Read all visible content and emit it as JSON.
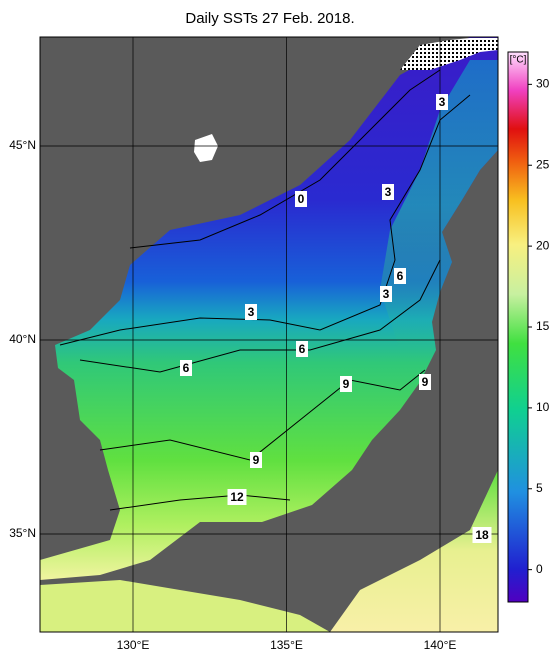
{
  "title": "Daily SSTs 27 Feb. 2018.",
  "lat_ticks": [
    {
      "value": 45,
      "label": "45°N"
    },
    {
      "value": 40,
      "label": "40°N"
    },
    {
      "value": 35,
      "label": "35°N"
    }
  ],
  "lon_ticks": [
    {
      "value": 130,
      "label": "130°E"
    },
    {
      "value": 135,
      "label": "135°E"
    },
    {
      "value": 140,
      "label": "140°E"
    }
  ],
  "colorbar": {
    "unit": "[°C]",
    "range": [
      -2,
      32
    ],
    "ticks": [
      0,
      5,
      10,
      15,
      20,
      25,
      30
    ]
  },
  "contour_labels": [
    3,
    0,
    3,
    6,
    3,
    3,
    6,
    6,
    9,
    9,
    9,
    12,
    18
  ]
}
